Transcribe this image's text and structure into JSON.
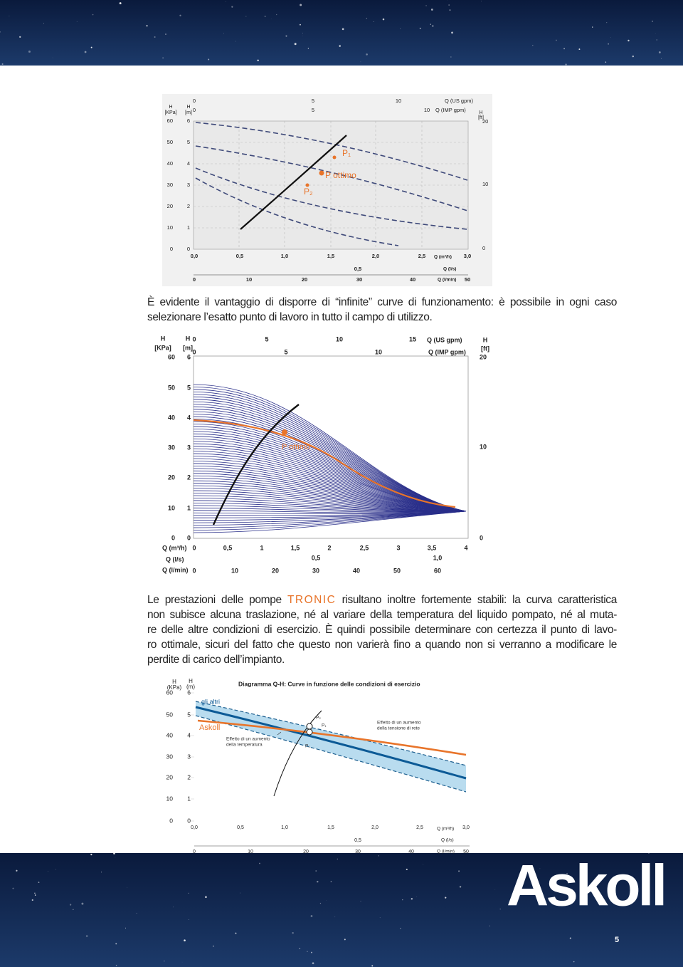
{
  "figure1": {
    "kpa_title": [
      "H",
      "[KPa]"
    ],
    "m_title": [
      "H",
      "[m]"
    ],
    "ft_title": [
      "H",
      "[ft]"
    ],
    "us_title": "Q (US gpm)",
    "imp_title": "Q (IMP gpm)",
    "kpa_ticks": [
      "60",
      "50",
      "40",
      "30",
      "20",
      "10",
      "0"
    ],
    "m_ticks": [
      "6",
      "5",
      "4",
      "3",
      "2",
      "1",
      "0"
    ],
    "ft_ticks": [
      "20",
      "10",
      "0"
    ],
    "us_ticks": [
      "0",
      "5",
      "10"
    ],
    "imp_ticks": [
      "0",
      "5",
      "10"
    ],
    "m3h_title": "Q (m³/h)",
    "m3h_ticks": [
      "0,0",
      "0,5",
      "1,0",
      "1,5",
      "2,0",
      "2,5",
      "3,0"
    ],
    "ls_title": "Q (l/s)",
    "ls_ticks": [
      "0,5"
    ],
    "lmin_title": "Q (l/min)",
    "lmin_ticks": [
      "0",
      "10",
      "20",
      "30",
      "40",
      "50"
    ],
    "point_labels": [
      "P₁",
      "P ottimo",
      "P₂"
    ]
  },
  "paragraph1": [
    "È evidente il vantaggio di disporre di “infinite” curve di funzionamento: è possibile in ogni caso",
    "selezionare l’esatto punto di lavoro in tutto il campo di utilizzo."
  ],
  "figure2": {
    "kpa_title": [
      "H",
      "[KPa]"
    ],
    "m_title": [
      "H",
      "[m]"
    ],
    "ft_title": [
      "H",
      "[ft]"
    ],
    "us_title": "Q (US gpm)",
    "imp_title": "Q (IMP gpm)",
    "kpa_ticks": [
      "60",
      "50",
      "40",
      "30",
      "20",
      "10",
      "0"
    ],
    "m_ticks": [
      "6",
      "5",
      "4",
      "3",
      "2",
      "1",
      "0"
    ],
    "ft_ticks": [
      "20",
      "10",
      "0"
    ],
    "us_ticks": [
      "0",
      "5",
      "10",
      "15"
    ],
    "imp_ticks": [
      "0",
      "5",
      "10"
    ],
    "m3h_title": "Q (m³/h)",
    "m3h_ticks": [
      "0",
      "0,5",
      "1",
      "1,5",
      "2",
      "2,5",
      "3",
      "3,5",
      "4"
    ],
    "ls_title": "Q (l/s)",
    "ls_ticks": [
      "0,5",
      "1,0"
    ],
    "lmin_title": "Q (l/min)",
    "lmin_ticks": [
      "0",
      "10",
      "20",
      "30",
      "40",
      "50",
      "60"
    ],
    "point_label": "P ottimo"
  },
  "paragraph2": {
    "first_before": "Le prestazioni delle pompe",
    "brand": "TRONIC",
    "first_after": "risultano inoltre fortemente stabili: la curva caratteristica",
    "lines": [
      "non subisce alcuna traslazione, né al variare della temperatura del liquido pompato, né al muta-",
      "re delle altre condizioni di esercizio. È quindi possibile determinare con certezza il punto di lavo-",
      "ro ottimale, sicuri del fatto che questo non varierà fino a quando non si verranno a modificare le",
      "perdite di carico dell’impianto."
    ]
  },
  "figure3": {
    "title": "Diagramma Q-H: Curve in funzione delle condizioni di esercizio",
    "kpa_title": [
      "H",
      "(KPa)"
    ],
    "m_title": [
      "H",
      "(m)"
    ],
    "kpa_ticks": [
      "60",
      "50",
      "40",
      "30",
      "20",
      "10",
      "0"
    ],
    "m_ticks": [
      "6",
      "5",
      "4",
      "3",
      "2",
      "1",
      "0"
    ],
    "m3h_title": "Q (m³/h)",
    "m3h_ticks": [
      "0,0",
      "0,5",
      "1,0",
      "1,5",
      "2,0",
      "2,5",
      "3,0"
    ],
    "ls_title": "Q (l/s)",
    "ls_ticks": [
      "0,5"
    ],
    "lmin_title": "Q (l/min)",
    "lmin_ticks": [
      "0",
      "10",
      "20",
      "30",
      "40",
      "50"
    ],
    "others_label": "gli altri",
    "brand_label": "Askoll",
    "temperature_note": [
      "Effetto di un aumento",
      "della temperatura"
    ],
    "voltage_note": [
      "Effetto di un aumento",
      "della tensione di rete"
    ],
    "point_labels": [
      "P₂",
      "P₁",
      "P₁"
    ]
  },
  "footer": {
    "logo": "Askoll",
    "page_number": "5"
  }
}
